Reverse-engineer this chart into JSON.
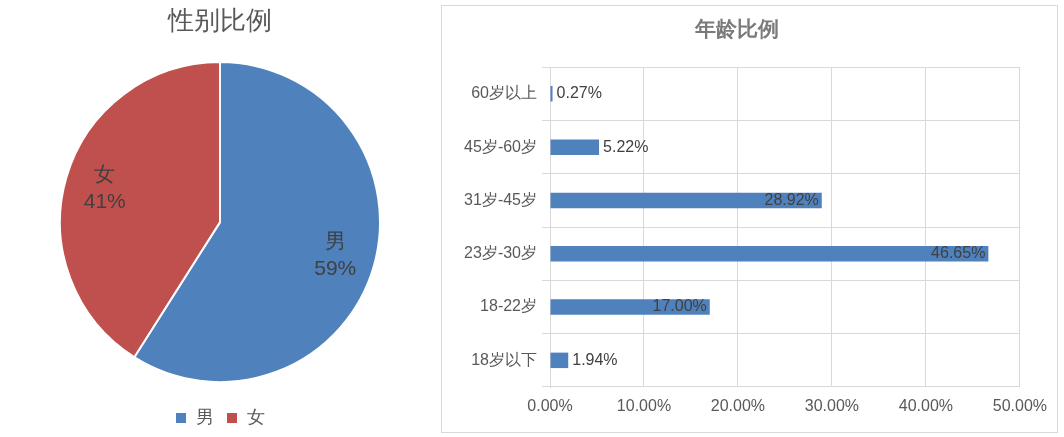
{
  "chart_data": [
    {
      "type": "pie",
      "title": "性别比例",
      "categories": [
        "男",
        "女"
      ],
      "values": [
        59,
        41
      ],
      "colors": [
        "#4f81bd",
        "#c0504d"
      ],
      "value_labels": [
        "59%",
        "41%"
      ],
      "legend": "bottom"
    },
    {
      "type": "bar",
      "orientation": "horizontal",
      "title": "年龄比例",
      "categories": [
        "60岁以上",
        "45岁-60岁",
        "31岁-45岁",
        "23岁-30岁",
        "18-22岁",
        "18岁以下"
      ],
      "values": [
        0.27,
        5.22,
        28.92,
        46.65,
        17.0,
        1.94
      ],
      "color": "#4f81bd",
      "value_labels": [
        "0.27%",
        "5.22%",
        "28.92%",
        "46.65%",
        "17.00%",
        "1.94%"
      ],
      "xlim": [
        0,
        50
      ],
      "xticks": [
        {
          "value": 0,
          "label": "0.00%"
        },
        {
          "value": 10,
          "label": "10.00%"
        },
        {
          "value": 20,
          "label": "20.00%"
        },
        {
          "value": 30,
          "label": "30.00%"
        },
        {
          "value": 40,
          "label": "40.00%"
        },
        {
          "value": 50,
          "label": "50.00%"
        }
      ],
      "grid": true,
      "legend": false
    }
  ]
}
